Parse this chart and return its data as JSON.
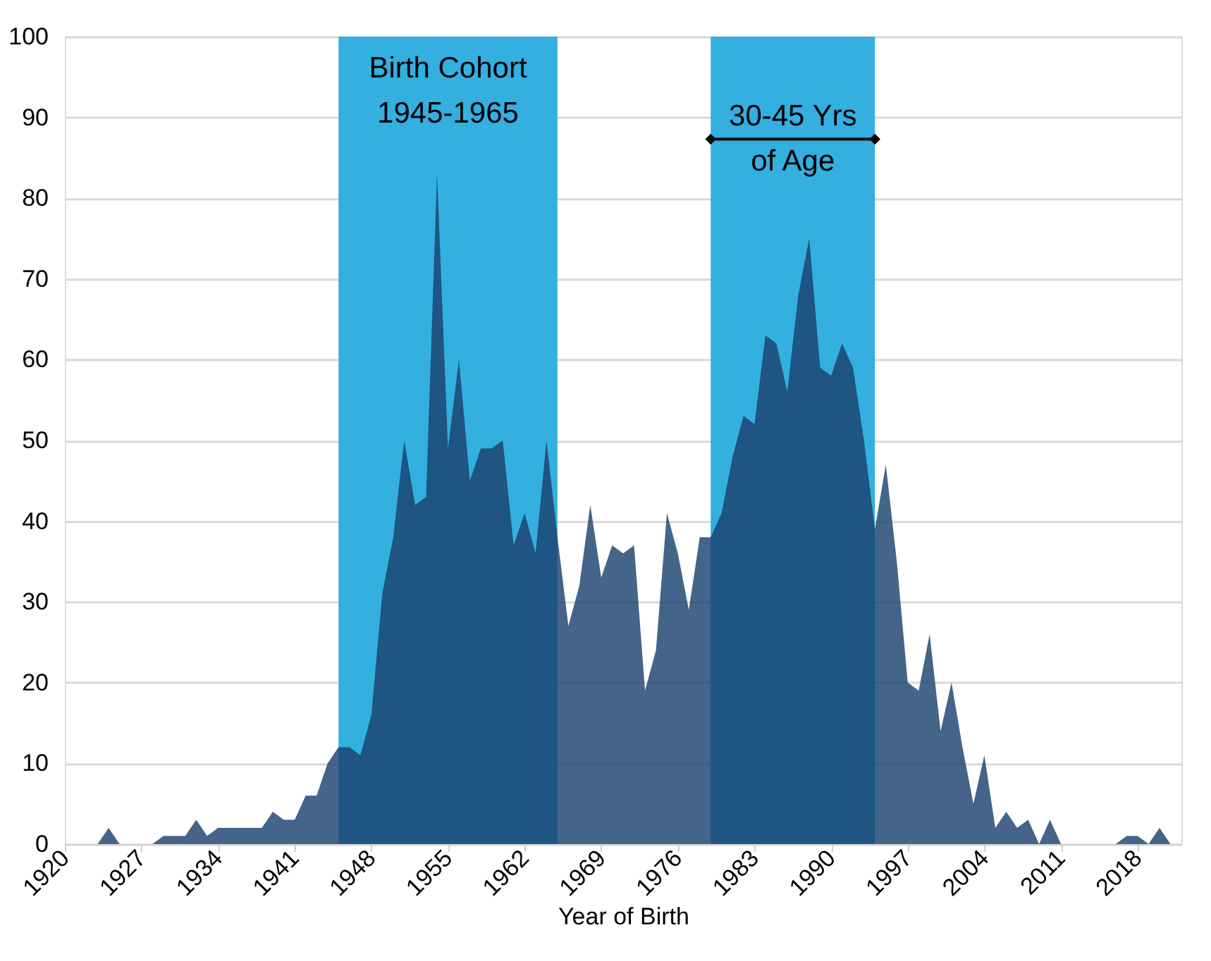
{
  "chart_data": {
    "type": "area",
    "xlabel": "Year of Birth",
    "x": [
      1920,
      1921,
      1922,
      1923,
      1924,
      1925,
      1926,
      1927,
      1928,
      1929,
      1930,
      1931,
      1932,
      1933,
      1934,
      1935,
      1936,
      1937,
      1938,
      1939,
      1940,
      1941,
      1942,
      1943,
      1944,
      1945,
      1946,
      1947,
      1948,
      1949,
      1950,
      1951,
      1952,
      1953,
      1954,
      1955,
      1956,
      1957,
      1958,
      1959,
      1960,
      1961,
      1962,
      1963,
      1964,
      1965,
      1966,
      1967,
      1968,
      1969,
      1970,
      1971,
      1972,
      1973,
      1974,
      1975,
      1976,
      1977,
      1978,
      1979,
      1980,
      1981,
      1982,
      1983,
      1984,
      1985,
      1986,
      1987,
      1988,
      1989,
      1990,
      1991,
      1992,
      1993,
      1994,
      1995,
      1996,
      1997,
      1998,
      1999,
      2000,
      2001,
      2002,
      2003,
      2004,
      2005,
      2006,
      2007,
      2008,
      2009,
      2010,
      2011,
      2012,
      2013,
      2014,
      2015,
      2016,
      2017,
      2018,
      2019,
      2020,
      2021
    ],
    "series": [
      {
        "color": "#1a406e",
        "values": [
          0,
          0,
          0,
          0,
          2,
          0,
          0,
          0,
          0,
          1,
          1,
          1,
          3,
          1,
          2,
          2,
          2,
          2,
          2,
          4,
          3,
          3,
          6,
          6,
          10,
          12,
          12,
          11,
          16,
          31,
          38,
          50,
          42,
          43,
          83,
          49,
          60,
          45,
          49,
          49,
          50,
          37,
          41,
          36,
          50,
          38,
          27,
          32,
          42,
          33,
          37,
          36,
          37,
          19,
          24,
          41,
          36,
          29,
          38,
          38,
          41,
          48,
          53,
          52,
          63,
          62,
          56,
          68,
          75,
          59,
          58,
          62,
          59,
          50,
          39,
          47,
          35,
          20,
          19,
          26,
          14,
          20,
          12,
          5,
          11,
          2,
          4,
          2,
          3,
          0,
          3,
          0,
          0,
          0,
          0,
          0,
          0,
          1,
          1,
          0,
          2,
          0
        ]
      }
    ],
    "xlim": [
      1920,
      2022
    ],
    "xticks": [
      1920,
      1927,
      1934,
      1941,
      1948,
      1955,
      1962,
      1969,
      1976,
      1983,
      1990,
      1997,
      2004,
      2011,
      2018
    ],
    "ylim": [
      0,
      100
    ],
    "yticks": [
      0,
      10,
      20,
      30,
      40,
      50,
      60,
      70,
      80,
      90,
      100
    ],
    "grid": "y",
    "bands": [
      {
        "axis": "x",
        "from": 1945,
        "to": 1965,
        "label": "Birth Cohort\n1945-1965",
        "color": "#33afe0"
      },
      {
        "axis": "x",
        "from": 1979,
        "to": 1994,
        "label": null,
        "color": "#33afe0"
      }
    ],
    "annotations": [
      "30-45 Yrs\nof Age"
    ]
  }
}
